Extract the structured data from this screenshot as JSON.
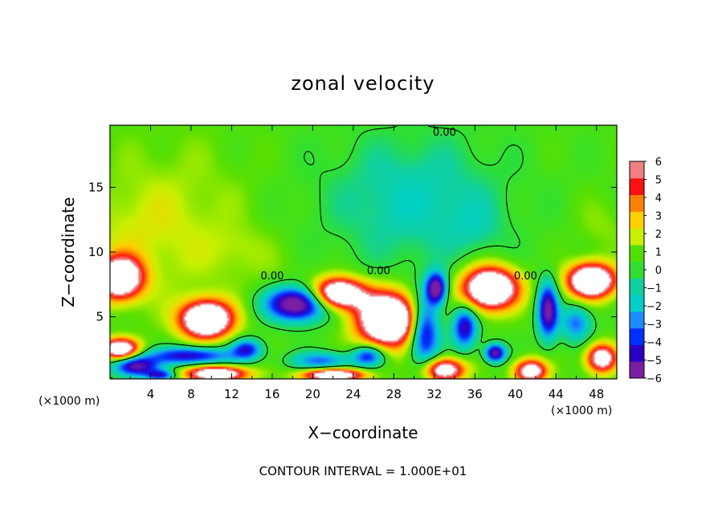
{
  "chart_data": {
    "type": "heatmap",
    "title": "zonal velocity",
    "xlabel": "X−coordinate",
    "ylabel": "Z−coordinate",
    "x_unit_label_left": "(×1000 m)",
    "x_unit_label_right": "(×1000 m)",
    "footer": "CONTOUR INTERVAL = 1.000E+01",
    "xlim": [
      0,
      50
    ],
    "ylim": [
      0.2,
      19.8
    ],
    "x_ticks": [
      4,
      8,
      12,
      16,
      20,
      24,
      28,
      32,
      36,
      40,
      44,
      48
    ],
    "x_tick_labels": [
      "4",
      "8",
      "12",
      "16",
      "20",
      "24",
      "28",
      "32",
      "36",
      "40",
      "44",
      "48"
    ],
    "y_ticks": [
      5,
      10,
      15
    ],
    "y_tick_labels": [
      "5",
      "10",
      "15"
    ],
    "colorbar": {
      "min": -6,
      "max": 6,
      "tick_labels": [
        "6",
        "5",
        "4",
        "3",
        "2",
        "1",
        "0",
        "−1",
        "−2",
        "−3",
        "−4",
        "−5",
        "−6"
      ],
      "colors": [
        "#7a1fa2",
        "#2a00c8",
        "#0030ff",
        "#1a8cff",
        "#00d0c8",
        "#10d0a0",
        "#30e030",
        "#50e000",
        "#c8f000",
        "#ffd000",
        "#ff8000",
        "#ff1010",
        "#f08080"
      ]
    },
    "contour_labels": [
      {
        "text": "0.00",
        "x": 33,
        "z": 19.3
      },
      {
        "text": "0.00",
        "x": 16,
        "z": 8.2
      },
      {
        "text": "0.00",
        "x": 26.5,
        "z": 8.6
      },
      {
        "text": "0.00",
        "x": 41,
        "z": 8.2
      }
    ],
    "cores": [
      {
        "x": 1.0,
        "z": 8.0,
        "sx": 2.2,
        "sz": 1.6,
        "v": 10.0
      },
      {
        "x": 9.5,
        "z": 4.8,
        "sx": 2.5,
        "sz": 1.4,
        "v": 11.0
      },
      {
        "x": 18.5,
        "z": 6.0,
        "sx": 3.0,
        "sz": 1.3,
        "v": -8.5
      },
      {
        "x": 22.5,
        "z": 6.8,
        "sx": 2.6,
        "sz": 1.2,
        "v": 10.0
      },
      {
        "x": 27.5,
        "z": 4.8,
        "sx": 3.0,
        "sz": 2.0,
        "v": 12.0
      },
      {
        "x": 31.0,
        "z": 4.0,
        "sx": 1.5,
        "sz": 2.6,
        "v": -7.0
      },
      {
        "x": 32.2,
        "z": 7.2,
        "sx": 1.0,
        "sz": 1.2,
        "v": -7.5
      },
      {
        "x": 37.5,
        "z": 7.2,
        "sx": 2.7,
        "sz": 1.6,
        "v": 11.0
      },
      {
        "x": 35.0,
        "z": 4.2,
        "sx": 1.2,
        "sz": 1.6,
        "v": -6.0
      },
      {
        "x": 38.0,
        "z": 2.2,
        "sx": 1.0,
        "sz": 0.7,
        "v": -7.0
      },
      {
        "x": 43.2,
        "z": 5.5,
        "sx": 1.0,
        "sz": 2.2,
        "v": -7.0
      },
      {
        "x": 47.5,
        "z": 7.8,
        "sx": 2.3,
        "sz": 1.3,
        "v": 11.0
      },
      {
        "x": 46.0,
        "z": 4.5,
        "sx": 1.5,
        "sz": 1.4,
        "v": -4.0
      },
      {
        "x": 1.0,
        "z": 2.5,
        "sx": 1.8,
        "sz": 0.8,
        "v": 9.0
      },
      {
        "x": 2.5,
        "z": 1.2,
        "sx": 2.2,
        "sz": 0.8,
        "v": -7.0
      },
      {
        "x": 8.0,
        "z": 2.0,
        "sx": 4.0,
        "sz": 0.7,
        "v": -6.0
      },
      {
        "x": 10.5,
        "z": 0.6,
        "sx": 3.0,
        "sz": 0.6,
        "v": 9.0
      },
      {
        "x": 13.5,
        "z": 2.5,
        "sx": 1.5,
        "sz": 0.8,
        "v": -5.0
      },
      {
        "x": 21.0,
        "z": 1.6,
        "sx": 3.0,
        "sz": 0.7,
        "v": -4.0
      },
      {
        "x": 22.0,
        "z": 0.5,
        "sx": 3.0,
        "sz": 0.5,
        "v": 9.0
      },
      {
        "x": 25.5,
        "z": 2.0,
        "sx": 1.5,
        "sz": 0.8,
        "v": -5.0
      },
      {
        "x": 33.0,
        "z": 0.9,
        "sx": 2.0,
        "sz": 0.9,
        "v": 8.0
      },
      {
        "x": 41.5,
        "z": 0.8,
        "sx": 1.6,
        "sz": 0.9,
        "v": 8.0
      },
      {
        "x": 48.5,
        "z": 1.8,
        "sx": 1.5,
        "sz": 1.1,
        "v": 8.0
      },
      {
        "x": 5.0,
        "z": 0.5,
        "sx": 1.4,
        "sz": 0.4,
        "v": -5.0
      },
      {
        "x": 15.0,
        "z": 9.0,
        "sx": 5.0,
        "sz": 2.0,
        "v": 0.4
      },
      {
        "x": 2.0,
        "z": 12.0,
        "sx": 4.0,
        "sz": 3.0,
        "v": 0.5
      },
      {
        "x": 12.5,
        "z": 10.5,
        "sx": 2.5,
        "sz": 1.5,
        "v": 0.6
      },
      {
        "x": 36.0,
        "z": 12.0,
        "sx": 2.5,
        "sz": 2.0,
        "v": -1.0
      },
      {
        "x": 30.0,
        "z": 14.0,
        "sx": 8.0,
        "sz": 4.0,
        "v": -0.6
      },
      {
        "x": 48.5,
        "z": 12.0,
        "sx": 2.5,
        "sz": 2.0,
        "v": 0.8
      }
    ]
  }
}
